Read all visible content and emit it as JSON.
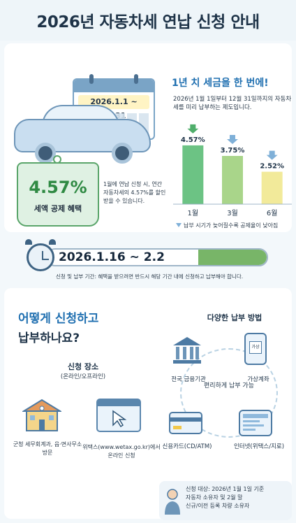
{
  "header": {
    "title": "2026년 자동차세 연납 신청 안내"
  },
  "calendar": {
    "range": "2026.1.1 ~ 12.31"
  },
  "discount_tag": {
    "percent": "4.57%",
    "label": "세액 공제 혜택"
  },
  "discount_desc": "1월에 연납 신청 시, 연간 자동차세의 4.57%를 할인받을 수 있습니다.",
  "prepay": {
    "title": "1년 치 세금을 한 번에!",
    "desc": "2026년 1월 1일부터 12월 31일까지의 자동차세를 미리 납부하는 제도입니다.",
    "note": "납부 시기가 늦어질수록 공제율이 낮아짐"
  },
  "chart_data": {
    "type": "bar",
    "categories": [
      "1월",
      "3월",
      "6월"
    ],
    "values": [
      4.57,
      3.75,
      2.52
    ],
    "value_labels": [
      "4.57%",
      "3.75%",
      "2.52%"
    ],
    "colors": [
      "#6cc384",
      "#a9d58a",
      "#f2ea9a"
    ],
    "ylim": [
      0,
      5
    ]
  },
  "period": {
    "range": "2026.1.16 ~ 2.2",
    "note": "신청 및 납부 기간: 혜택을 받으려면 반드시 해당 기간 내에 신청하고 납부해야 합니다."
  },
  "how": {
    "title_line1": "어떻게 신청하고",
    "title_line2": "납부하나요?",
    "place_title": "신청 장소",
    "place_sub": "(온라인/오프라인)",
    "place_offline": "군청 세무회계과, 읍·면사무소 방문",
    "place_online": "위택스(www.wetax.go.kr)에서 온라인 신청"
  },
  "payment": {
    "title": "다양한 납부 방법",
    "center": "편리하게 납부 가능",
    "bank": "전국 금융기관",
    "virtual": "가상계좌",
    "virtual_icon_text": "가상",
    "card": "신용카드(CD/ATM)",
    "internet": "인터넷(위택스/지로)"
  },
  "footer": {
    "line1": "신청 대상: 2026년 1월 1일 기준",
    "line2": "자동차 소유자 및 2월 말",
    "line3": "신규/이전 등록 차량 소유자"
  }
}
